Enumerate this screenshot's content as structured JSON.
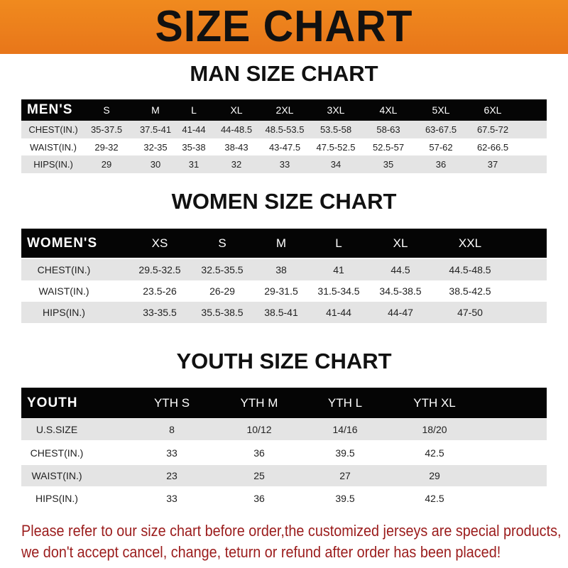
{
  "banner": {
    "title": "SIZE CHART",
    "color": "#ee801c"
  },
  "men": {
    "title": "MAN SIZE CHART",
    "header": [
      "MEN'S",
      "S",
      "M",
      "L",
      "XL",
      "2XL",
      "3XL",
      "4XL",
      "5XL",
      "6XL"
    ],
    "rows": [
      [
        "CHEST(IN.)",
        "35-37.5",
        "37.5-41",
        "41-44",
        "44-48.5",
        "48.5-53.5",
        "53.5-58",
        "58-63",
        "63-67.5",
        "67.5-72"
      ],
      [
        "WAIST(IN.)",
        "29-32",
        "32-35",
        "35-38",
        "38-43",
        "43-47.5",
        "47.5-52.5",
        "52.5-57",
        "57-62",
        "62-66.5"
      ],
      [
        "HIPS(IN.)",
        "29",
        "30",
        "31",
        "32",
        "33",
        "34",
        "35",
        "36",
        "37"
      ]
    ]
  },
  "women": {
    "title": "WOMEN SIZE CHART",
    "header": [
      "WOMEN'S",
      "XS",
      "S",
      "M",
      "L",
      "XL",
      "XXL"
    ],
    "rows": [
      [
        "CHEST(IN.)",
        "29.5-32.5",
        "32.5-35.5",
        "38",
        "41",
        "44.5",
        "44.5-48.5"
      ],
      [
        "WAIST(IN.)",
        "23.5-26",
        "26-29",
        "29-31.5",
        "31.5-34.5",
        "34.5-38.5",
        "38.5-42.5"
      ],
      [
        "HIPS(IN.)",
        "33-35.5",
        "35.5-38.5",
        "38.5-41",
        "41-44",
        "44-47",
        "47-50"
      ]
    ]
  },
  "youth": {
    "title": "YOUTH SIZE CHART",
    "header": [
      "YOUTH",
      "YTH S",
      "YTH M",
      "YTH L",
      "YTH XL"
    ],
    "rows": [
      [
        "U.S.SIZE",
        "8",
        "10/12",
        "14/16",
        "18/20"
      ],
      [
        "CHEST(IN.)",
        "33",
        "36",
        "39.5",
        "42.5"
      ],
      [
        "WAIST(IN.)",
        "23",
        "25",
        "27",
        "29"
      ],
      [
        "HIPS(IN.)",
        "33",
        "36",
        "39.5",
        "42.5"
      ]
    ]
  },
  "note": {
    "line1": "Please refer to our size chart before order,the customized jerseys are special products,",
    "line2": "we don't accept cancel, change, teturn or refund after order has been placed!",
    "color": "#9b1c1c"
  }
}
